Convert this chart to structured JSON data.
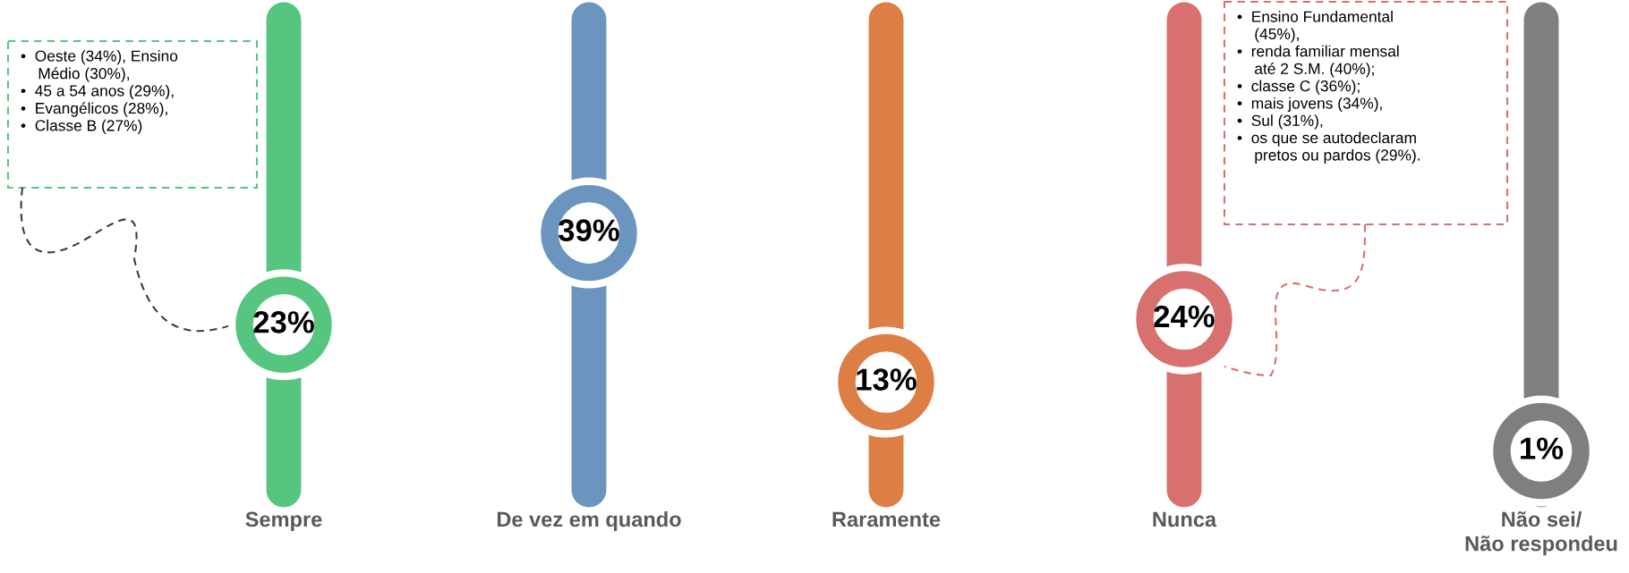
{
  "chart_data": {
    "type": "other",
    "categories": [
      "Sempre",
      "De vez em quando",
      "Raramente",
      "Nunca",
      "Não sei/\nNão respondeu"
    ],
    "values": [
      23,
      39,
      13,
      24,
      1
    ],
    "value_labels": [
      "23%",
      "39%",
      "13%",
      "24%",
      "1%"
    ],
    "colors": [
      "#55c57f",
      "#6b95bf",
      "#dd7f45",
      "#d87070",
      "#7f7f7f"
    ],
    "annotations": [
      "•  Oeste (34%), Ensino\n    Médio (30%),\n•  45 a 54 anos (29%),\n•  Evangélicos (28%),\n•  Classe B (27%)",
      "•  Ensino Fundamental\n    (45%),\n•  renda familiar mensal\n    até 2 S.M. (40%);\n•  classe C (36%);\n•  mais jovens (34%),\n•  Sul (31%),\n•  os que se autodeclaram\n    pretos ou pardos (29%)."
    ]
  }
}
